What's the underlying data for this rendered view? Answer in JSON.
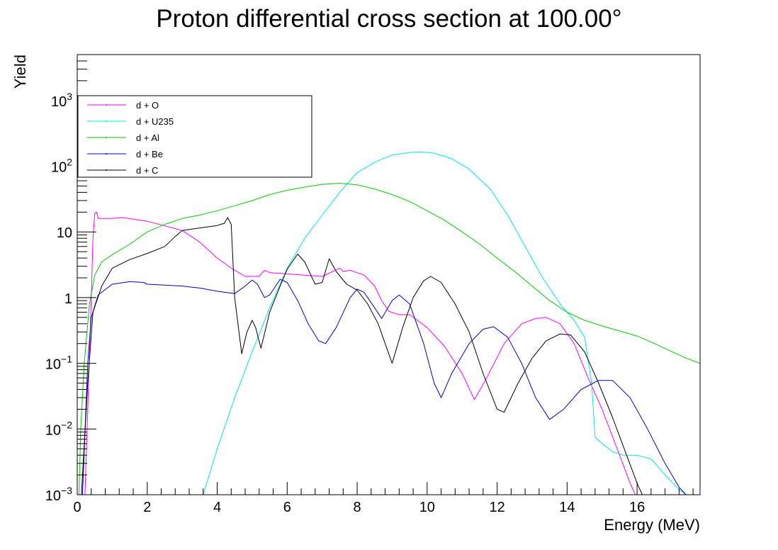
{
  "chart_data": {
    "type": "line",
    "title": "Proton differential cross section at 100.00°",
    "xlabel": "Energy (MeV)",
    "ylabel": "Yield",
    "xlim": [
      0,
      17.8
    ],
    "ylim": [
      0.001,
      5000
    ],
    "y_scale": "log",
    "grid": false,
    "legend_position": "top-left",
    "x_ticks": [
      0,
      2,
      4,
      6,
      8,
      10,
      12,
      14,
      16
    ],
    "x_tick_labels": [
      "0",
      "2",
      "4",
      "6",
      "8",
      "10",
      "12",
      "14",
      "16"
    ],
    "y_ticks": [
      0.001,
      0.01,
      0.1,
      1,
      10,
      100,
      1000
    ],
    "y_tick_labels": [
      {
        "base": "10",
        "exp": "−3"
      },
      {
        "base": "10",
        "exp": "−2"
      },
      {
        "base": "10",
        "exp": "−1"
      },
      {
        "base": "1",
        "exp": ""
      },
      {
        "base": "10",
        "exp": ""
      },
      {
        "base": "10",
        "exp": "2"
      },
      {
        "base": "10",
        "exp": "3"
      }
    ],
    "series": [
      {
        "name": "d + O",
        "color": "#ff00ff",
        "points": [
          [
            0.22,
            0.001
          ],
          [
            0.3,
            0.02
          ],
          [
            0.4,
            1.0
          ],
          [
            0.45,
            8
          ],
          [
            0.5,
            19
          ],
          [
            0.55,
            20
          ],
          [
            0.6,
            16
          ],
          [
            1.0,
            16
          ],
          [
            1.3,
            16.5
          ],
          [
            2.0,
            14.5
          ],
          [
            3.0,
            10.5
          ],
          [
            3.5,
            7
          ],
          [
            4.0,
            4
          ],
          [
            4.4,
            2.8
          ],
          [
            4.8,
            2.1
          ],
          [
            5.2,
            2.1
          ],
          [
            5.35,
            2.6
          ],
          [
            5.5,
            2.4
          ],
          [
            6.0,
            2.3
          ],
          [
            6.5,
            2.2
          ],
          [
            7.0,
            2.1
          ],
          [
            7.5,
            2.8
          ],
          [
            7.6,
            2.5
          ],
          [
            7.8,
            2.6
          ],
          [
            8.2,
            2.2
          ],
          [
            8.5,
            1.5
          ],
          [
            8.7,
            0.9
          ],
          [
            8.9,
            0.62
          ],
          [
            9.2,
            0.55
          ],
          [
            9.5,
            0.55
          ],
          [
            10.0,
            0.35
          ],
          [
            10.5,
            0.18
          ],
          [
            11.0,
            0.07
          ],
          [
            11.35,
            0.028
          ],
          [
            11.7,
            0.06
          ],
          [
            12.2,
            0.2
          ],
          [
            12.7,
            0.4
          ],
          [
            13.1,
            0.48
          ],
          [
            13.4,
            0.5
          ],
          [
            13.8,
            0.4
          ],
          [
            14.2,
            0.2
          ],
          [
            14.6,
            0.06
          ],
          [
            15.0,
            0.02
          ],
          [
            15.5,
            0.004
          ],
          [
            15.8,
            0.0015
          ],
          [
            15.95,
            0.001
          ]
        ]
      },
      {
        "name": "d + U235",
        "color": "#00e5e5",
        "points": [
          [
            3.6,
            0.001
          ],
          [
            4.0,
            0.005
          ],
          [
            4.5,
            0.03
          ],
          [
            5.0,
            0.15
          ],
          [
            5.5,
            0.7
          ],
          [
            6.0,
            2.8
          ],
          [
            6.5,
            8
          ],
          [
            7.0,
            18
          ],
          [
            7.5,
            40
          ],
          [
            8.0,
            80
          ],
          [
            8.5,
            115
          ],
          [
            9.0,
            148
          ],
          [
            9.5,
            162
          ],
          [
            9.8,
            165
          ],
          [
            10.2,
            158
          ],
          [
            10.7,
            130
          ],
          [
            11.2,
            90
          ],
          [
            11.8,
            45
          ],
          [
            12.3,
            18
          ],
          [
            12.8,
            6
          ],
          [
            13.3,
            2
          ],
          [
            13.8,
            0.8
          ],
          [
            14.2,
            0.45
          ],
          [
            14.5,
            0.25
          ],
          [
            14.7,
            0.05
          ],
          [
            14.8,
            0.0075
          ],
          [
            15.0,
            0.006
          ],
          [
            15.3,
            0.0045
          ],
          [
            15.6,
            0.004
          ],
          [
            16.0,
            0.004
          ],
          [
            16.4,
            0.0035
          ],
          [
            16.8,
            0.002
          ],
          [
            17.2,
            0.0012
          ],
          [
            17.4,
            0.001
          ]
        ]
      },
      {
        "name": "d + Al",
        "color": "#00cc00",
        "points": [
          [
            0.05,
            0.001
          ],
          [
            0.1,
            0.01
          ],
          [
            0.2,
            0.1
          ],
          [
            0.35,
            0.8
          ],
          [
            0.5,
            2.2
          ],
          [
            0.7,
            3.5
          ],
          [
            1.0,
            4.5
          ],
          [
            1.5,
            6.5
          ],
          [
            2.0,
            10
          ],
          [
            2.5,
            13
          ],
          [
            3.0,
            16
          ],
          [
            3.5,
            18
          ],
          [
            4.0,
            21
          ],
          [
            4.5,
            25
          ],
          [
            5.0,
            30
          ],
          [
            5.5,
            37
          ],
          [
            6.0,
            43
          ],
          [
            6.5,
            48
          ],
          [
            7.0,
            53
          ],
          [
            7.5,
            55
          ],
          [
            8.0,
            52
          ],
          [
            8.5,
            45
          ],
          [
            9.0,
            37
          ],
          [
            9.5,
            29
          ],
          [
            10.0,
            21
          ],
          [
            10.5,
            15
          ],
          [
            11.0,
            10
          ],
          [
            11.5,
            6.5
          ],
          [
            12.0,
            4
          ],
          [
            12.5,
            2.5
          ],
          [
            13.0,
            1.5
          ],
          [
            13.5,
            0.9
          ],
          [
            14.0,
            0.6
          ],
          [
            14.5,
            0.45
          ],
          [
            15.0,
            0.37
          ],
          [
            15.5,
            0.31
          ],
          [
            16.0,
            0.26
          ],
          [
            16.5,
            0.2
          ],
          [
            17.0,
            0.15
          ],
          [
            17.4,
            0.12
          ],
          [
            17.8,
            0.1
          ]
        ]
      },
      {
        "name": "d + Be",
        "color": "#0000cc",
        "points": [
          [
            0.15,
            0.001
          ],
          [
            0.3,
            0.1
          ],
          [
            0.4,
            0.5
          ],
          [
            0.6,
            1.1
          ],
          [
            1.0,
            1.6
          ],
          [
            1.5,
            1.75
          ],
          [
            1.9,
            1.7
          ],
          [
            2.0,
            1.6
          ],
          [
            2.5,
            1.55
          ],
          [
            3.0,
            1.5
          ],
          [
            3.5,
            1.4
          ],
          [
            4.0,
            1.25
          ],
          [
            4.5,
            1.15
          ],
          [
            4.8,
            1.5
          ],
          [
            5.0,
            1.85
          ],
          [
            5.15,
            1.6
          ],
          [
            5.35,
            1.0
          ],
          [
            5.5,
            1.1
          ],
          [
            5.8,
            1.9
          ],
          [
            6.0,
            1.7
          ],
          [
            6.3,
            0.9
          ],
          [
            6.6,
            0.4
          ],
          [
            6.9,
            0.22
          ],
          [
            7.1,
            0.2
          ],
          [
            7.4,
            0.35
          ],
          [
            7.8,
            1.0
          ],
          [
            8.0,
            1.35
          ],
          [
            8.2,
            1.2
          ],
          [
            8.5,
            0.7
          ],
          [
            8.7,
            0.48
          ],
          [
            9.0,
            0.9
          ],
          [
            9.2,
            1.1
          ],
          [
            9.5,
            0.8
          ],
          [
            9.9,
            0.2
          ],
          [
            10.2,
            0.05
          ],
          [
            10.4,
            0.03
          ],
          [
            10.7,
            0.07
          ],
          [
            11.2,
            0.2
          ],
          [
            11.6,
            0.33
          ],
          [
            11.9,
            0.36
          ],
          [
            12.3,
            0.25
          ],
          [
            12.7,
            0.1
          ],
          [
            13.1,
            0.03
          ],
          [
            13.5,
            0.014
          ],
          [
            13.9,
            0.02
          ],
          [
            14.4,
            0.04
          ],
          [
            14.9,
            0.055
          ],
          [
            15.3,
            0.055
          ],
          [
            15.8,
            0.03
          ],
          [
            16.3,
            0.01
          ],
          [
            16.8,
            0.003
          ],
          [
            17.2,
            0.0013
          ],
          [
            17.4,
            0.001
          ]
        ]
      },
      {
        "name": "d + C",
        "color": "#000000",
        "points": [
          [
            0.12,
            0.001
          ],
          [
            0.3,
            0.05
          ],
          [
            0.45,
            0.6
          ],
          [
            0.7,
            1.5
          ],
          [
            1.0,
            2.8
          ],
          [
            1.5,
            3.8
          ],
          [
            2.0,
            4.7
          ],
          [
            2.5,
            6
          ],
          [
            2.8,
            8.5
          ],
          [
            3.0,
            10.5
          ],
          [
            3.5,
            11.5
          ],
          [
            4.0,
            12.5
          ],
          [
            4.2,
            13.5
          ],
          [
            4.3,
            16.5
          ],
          [
            4.4,
            13
          ],
          [
            4.5,
            1.0
          ],
          [
            4.7,
            0.14
          ],
          [
            4.85,
            0.3
          ],
          [
            5.0,
            0.45
          ],
          [
            5.1,
            0.35
          ],
          [
            5.25,
            0.17
          ],
          [
            5.5,
            0.6
          ],
          [
            5.8,
            1.5
          ],
          [
            6.0,
            2.7
          ],
          [
            6.3,
            4.6
          ],
          [
            6.5,
            3.5
          ],
          [
            6.8,
            1.6
          ],
          [
            7.0,
            1.7
          ],
          [
            7.2,
            3.9
          ],
          [
            7.4,
            2.5
          ],
          [
            7.7,
            1.6
          ],
          [
            8.0,
            1.3
          ],
          [
            8.3,
            0.8
          ],
          [
            8.6,
            0.4
          ],
          [
            9.0,
            0.1
          ],
          [
            9.3,
            0.35
          ],
          [
            9.6,
            1.0
          ],
          [
            9.9,
            1.8
          ],
          [
            10.1,
            2.1
          ],
          [
            10.4,
            1.7
          ],
          [
            10.8,
            0.8
          ],
          [
            11.2,
            0.3
          ],
          [
            11.6,
            0.07
          ],
          [
            12.0,
            0.02
          ],
          [
            12.2,
            0.018
          ],
          [
            12.6,
            0.05
          ],
          [
            13.0,
            0.12
          ],
          [
            13.4,
            0.22
          ],
          [
            13.8,
            0.28
          ],
          [
            14.1,
            0.27
          ],
          [
            14.5,
            0.15
          ],
          [
            14.9,
            0.05
          ],
          [
            15.3,
            0.015
          ],
          [
            15.7,
            0.004
          ],
          [
            16.0,
            0.0015
          ],
          [
            16.15,
            0.001
          ]
        ]
      }
    ]
  }
}
